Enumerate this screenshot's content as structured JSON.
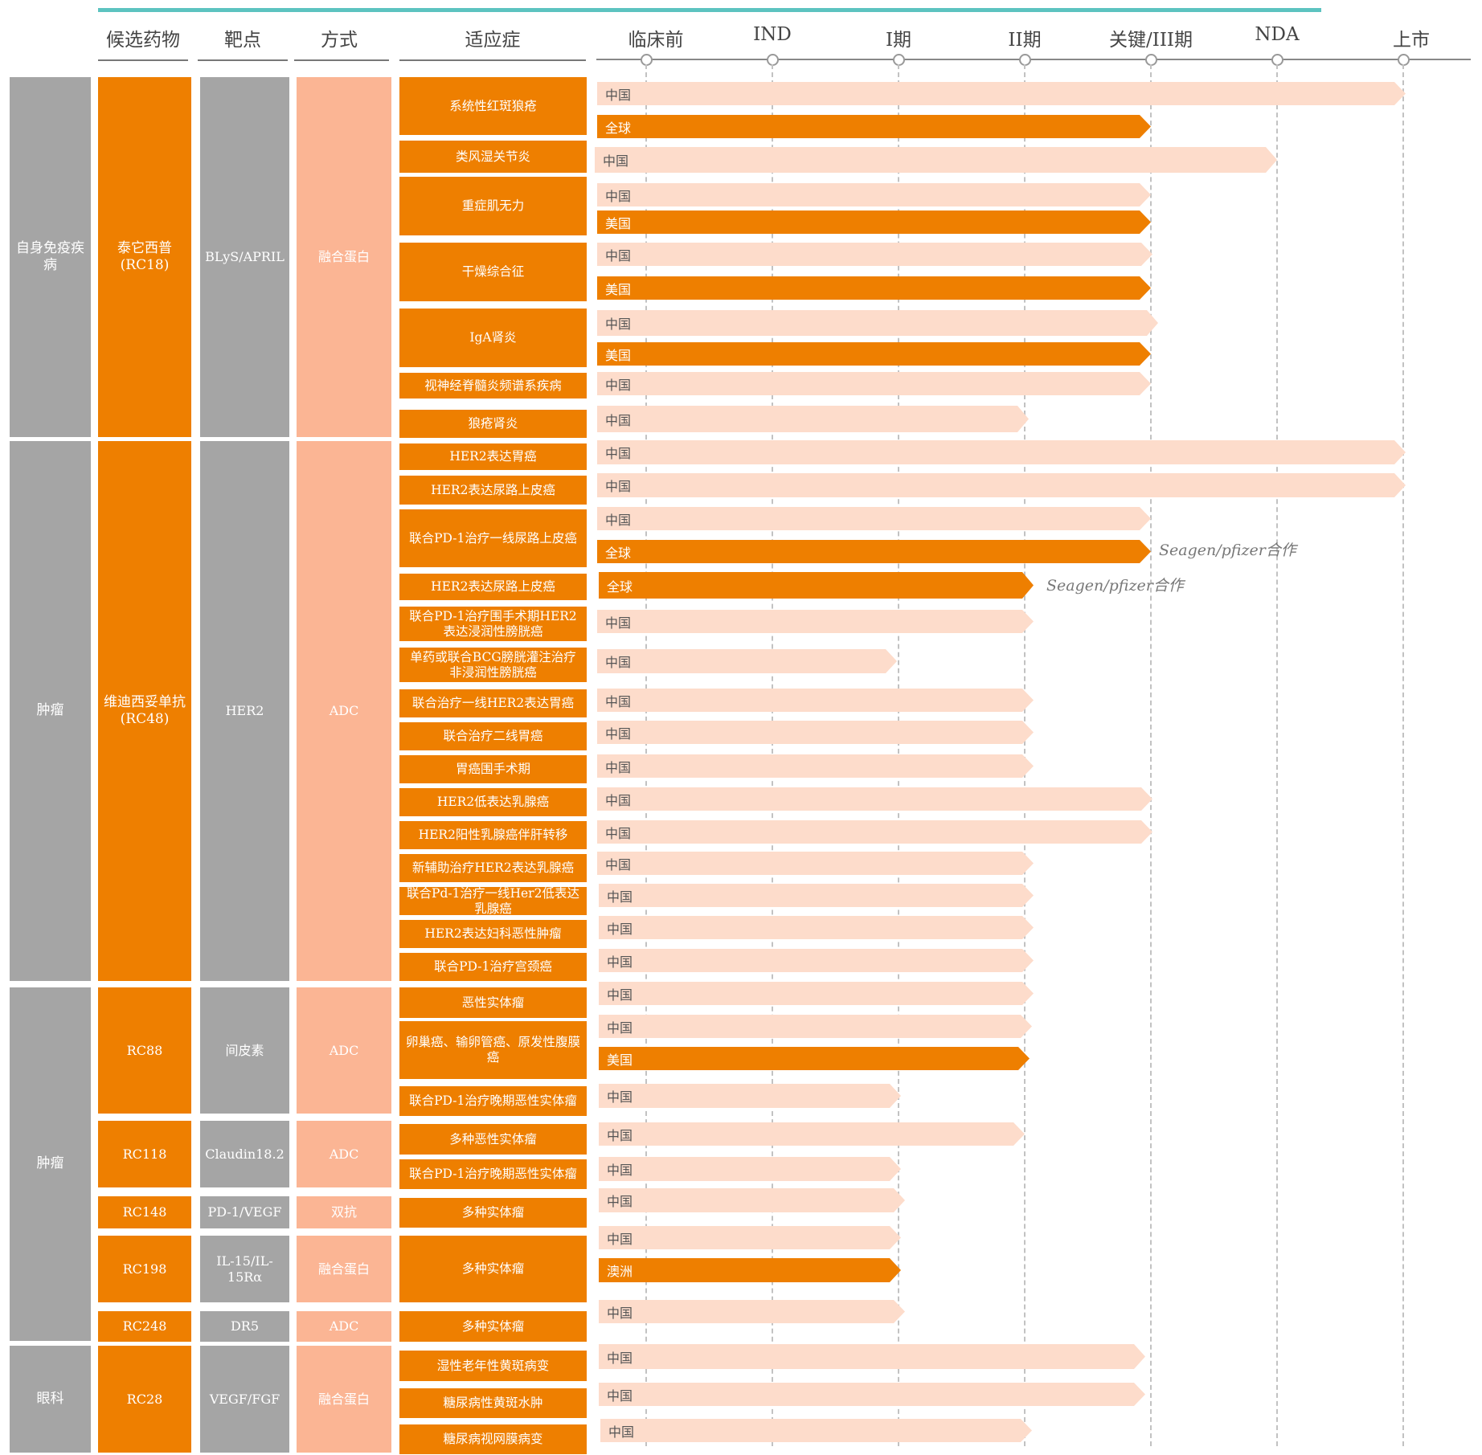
{
  "headers": [
    "候选药物",
    "靶点",
    "方式",
    "适应症"
  ],
  "stages": [
    "临床前",
    "IND",
    "I期",
    "II期",
    "关键/III期",
    "NDA",
    "上市"
  ],
  "colors": {
    "accent_line": "#5cc3c0",
    "orange": "#ee7f00",
    "light_bar": "#fddccb",
    "peach": "#fbb594",
    "gray": "#a5a5a5"
  },
  "areas": [
    "自身免疫疾病",
    "肿瘤",
    "肿瘤",
    "眼科"
  ],
  "drugs": [
    "泰它西普\n(RC18)",
    "维迪西妥单抗\n(RC48)",
    "RC88",
    "RC118",
    "RC148",
    "RC198",
    "RC248",
    "RC28"
  ],
  "targets": [
    "BLyS/APRIL",
    "HER2",
    "间皮素",
    "Claudin18.2",
    "PD-1/VEGF",
    "IL-15/IL-15Rα",
    "DR5",
    "VEGF/FGF"
  ],
  "modes": [
    "融合蛋白",
    "ADC",
    "ADC",
    "ADC",
    "双抗",
    "融合蛋白",
    "ADC",
    "融合蛋白"
  ],
  "indications": [
    "系统性红斑狼疮",
    "类风湿关节炎",
    "重症肌无力",
    "干燥综合征",
    "IgA肾炎",
    "视神经脊髓炎频谱系疾病",
    "狼疮肾炎",
    "HER2表达胃癌",
    "HER2表达尿路上皮癌",
    "联合PD-1治疗一线尿路上皮癌",
    "HER2表达尿路上皮癌",
    "联合PD-1治疗围手术期HER2表达浸润性膀胱癌",
    "单药或联合BCG膀胱灌注治疗非浸润性膀胱癌",
    "联合治疗一线HER2表达胃癌",
    "联合治疗二线胃癌",
    "胃癌围手术期",
    "HER2低表达乳腺癌",
    "HER2阳性乳腺癌伴肝转移",
    "新辅助治疗HER2表达乳腺癌",
    "联合Pd-1治疗一线Her2低表达乳腺癌",
    "HER2表达妇科恶性肿瘤",
    "联合PD-1治疗宫颈癌",
    "恶性实体瘤",
    "卵巢癌、输卵管癌、原发性腹膜癌",
    "联合PD-1治疗晚期恶性实体瘤",
    "多种恶性实体瘤",
    "联合PD-1治疗晚期恶性实体瘤",
    "多种实体瘤",
    "多种实体瘤",
    "多种实体瘤",
    "湿性老年性黄斑病变",
    "糖尿病性黄斑水肿",
    "糖尿病视网膜病变"
  ],
  "bars": [
    {
      "label": "中国",
      "kind": "light",
      "stage": 6
    },
    {
      "label": "全球",
      "kind": "dark",
      "stage": 4
    },
    {
      "label": "中国",
      "kind": "light",
      "stage": 5
    },
    {
      "label": "中国",
      "kind": "light",
      "stage": 4
    },
    {
      "label": "美国",
      "kind": "dark",
      "stage": 4
    },
    {
      "label": "中国",
      "kind": "light",
      "stage": 4
    },
    {
      "label": "美国",
      "kind": "dark",
      "stage": 4
    },
    {
      "label": "中国",
      "kind": "light",
      "stage": 4
    },
    {
      "label": "美国",
      "kind": "dark",
      "stage": 4
    },
    {
      "label": "中国",
      "kind": "light",
      "stage": 4
    },
    {
      "label": "中国",
      "kind": "light",
      "stage": 3
    },
    {
      "label": "中国",
      "kind": "light",
      "stage": 6
    },
    {
      "label": "中国",
      "kind": "light",
      "stage": 6
    },
    {
      "label": "中国",
      "kind": "light",
      "stage": 4
    },
    {
      "label": "全球",
      "kind": "dark",
      "stage": 4
    },
    {
      "label": "全球",
      "kind": "dark",
      "stage": 3
    },
    {
      "label": "中国",
      "kind": "light",
      "stage": 3
    },
    {
      "label": "中国",
      "kind": "light",
      "stage": 2
    },
    {
      "label": "中国",
      "kind": "light",
      "stage": 3
    },
    {
      "label": "中国",
      "kind": "light",
      "stage": 3
    },
    {
      "label": "中国",
      "kind": "light",
      "stage": 3
    },
    {
      "label": "中国",
      "kind": "light",
      "stage": 4
    },
    {
      "label": "中国",
      "kind": "light",
      "stage": 4
    },
    {
      "label": "中国",
      "kind": "light",
      "stage": 3
    },
    {
      "label": "中国",
      "kind": "light",
      "stage": 3
    },
    {
      "label": "中国",
      "kind": "light",
      "stage": 3
    },
    {
      "label": "中国",
      "kind": "light",
      "stage": 3
    },
    {
      "label": "中国",
      "kind": "light",
      "stage": 3
    },
    {
      "label": "中国",
      "kind": "light",
      "stage": 3
    },
    {
      "label": "美国",
      "kind": "dark",
      "stage": 3
    },
    {
      "label": "中国",
      "kind": "light",
      "stage": 2
    },
    {
      "label": "中国",
      "kind": "light",
      "stage": 3
    },
    {
      "label": "中国",
      "kind": "light",
      "stage": 2
    },
    {
      "label": "中国",
      "kind": "light",
      "stage": 2
    },
    {
      "label": "中国",
      "kind": "light",
      "stage": 2
    },
    {
      "label": "澳洲",
      "kind": "dark",
      "stage": 2
    },
    {
      "label": "中国",
      "kind": "light",
      "stage": 2
    },
    {
      "label": "中国",
      "kind": "light",
      "stage": 4
    },
    {
      "label": "中国",
      "kind": "light",
      "stage": 4
    },
    {
      "label": "中国",
      "kind": "light",
      "stage": 3
    }
  ],
  "notes": [
    "Seagen/pfizer合作",
    "Seagen/pfizer合作"
  ]
}
